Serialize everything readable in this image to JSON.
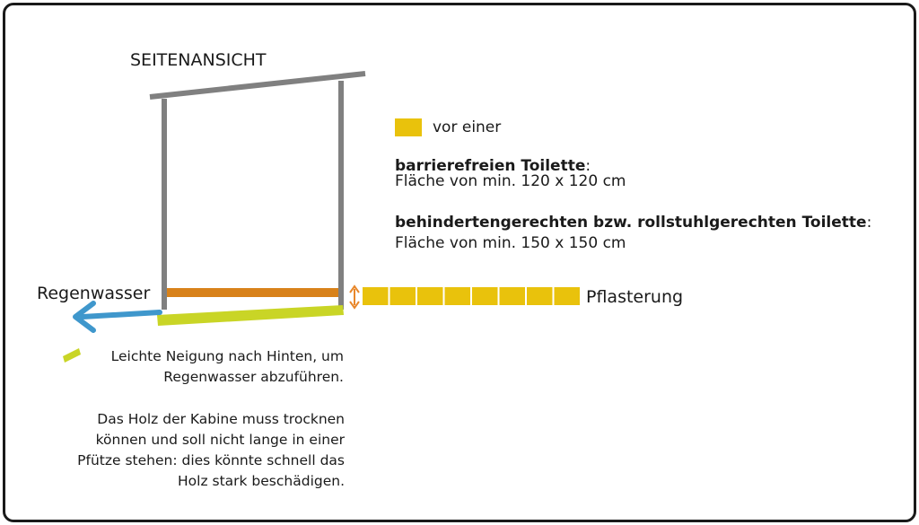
{
  "title": "SEITENANSICHT",
  "legend": {
    "swatch_color": "#e9c20c",
    "swatch_label": "vor einer"
  },
  "requirements": [
    {
      "title": "barrierefreien Toilette",
      "colon": ":",
      "text": "Fläche von min. 120 x 120 cm"
    },
    {
      "title": "behindertengerechten bzw. rollstuhlgerechten Toilette",
      "colon": ":",
      "text": "Fläche von min. 150 x 150 cm"
    }
  ],
  "labels": {
    "rainwater": "Regenwasser",
    "paving": "Pflasterung"
  },
  "notes": {
    "slope": "Leichte Neigung nach Hinten, um Regenwasser abzuführen.",
    "wood": "Das Holz der Kabine muss trocknen können und soll nicht lange in einer Pfütze stehen: dies könnte schnell das Holz stark beschädigen."
  },
  "colors": {
    "structure": "#808080",
    "floor": "#d8821a",
    "slope": "#c9d526",
    "rain_arrow": "#3f97cc",
    "paving": "#e9c20c",
    "gap_arrow": "#e8872a",
    "border": "#1a1a1a"
  },
  "paving_tiles": 8
}
